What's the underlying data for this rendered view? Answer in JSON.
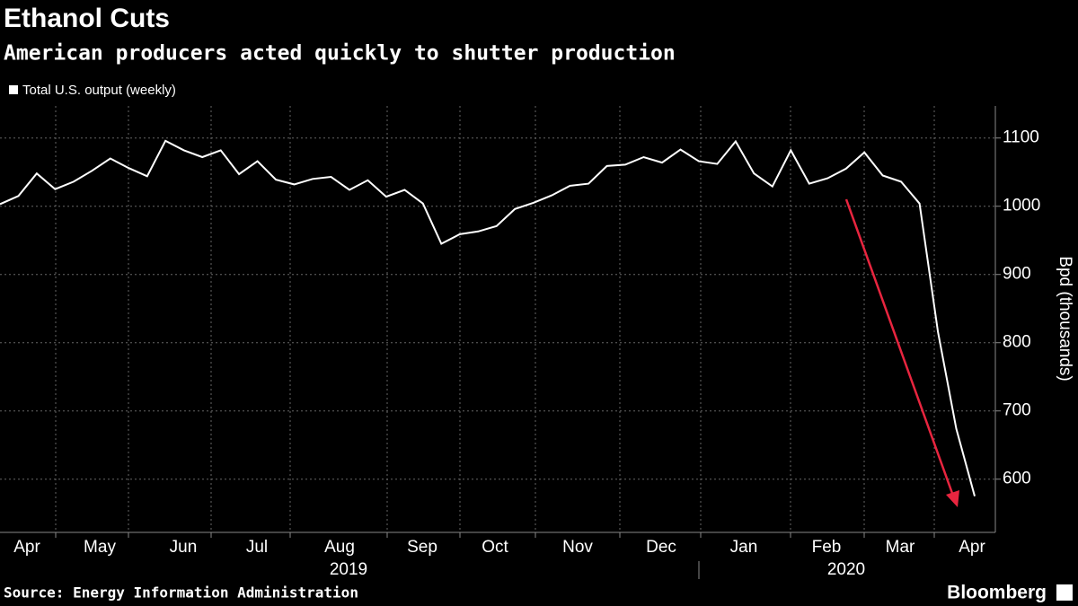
{
  "chart_data": {
    "type": "line",
    "title": "Ethanol Cuts",
    "subtitle": "American producers acted quickly to shutter production",
    "series": [
      {
        "name": "Total U.S. output (weekly)",
        "color": "#ffffff",
        "values": [
          1003,
          1015,
          1048,
          1025,
          1036,
          1052,
          1070,
          1056,
          1044,
          1096,
          1082,
          1072,
          1082,
          1047,
          1066,
          1039,
          1032,
          1040,
          1043,
          1024,
          1038,
          1014,
          1024,
          1004,
          945,
          959,
          963,
          971,
          996,
          1005,
          1016,
          1030,
          1033,
          1059,
          1061,
          1072,
          1064,
          1083,
          1066,
          1062,
          1095,
          1048,
          1029,
          1082,
          1033,
          1041,
          1055,
          1079,
          1045,
          1036,
          1004,
          816,
          674,
          575
        ]
      }
    ],
    "months": [
      "Apr",
      "May",
      "Jun",
      "Jul",
      "Aug",
      "Sep",
      "Oct",
      "Nov",
      "Dec",
      "Jan",
      "Feb",
      "Mar",
      "Apr"
    ],
    "years": [
      "2019",
      "2020"
    ],
    "ylabel": "Bpd (thousands)",
    "ylim": [
      522,
      1147
    ],
    "yticks": [
      600,
      700,
      800,
      900,
      1000,
      1100
    ],
    "grid": true,
    "source": "Source: Energy Information Administration",
    "brand": "Bloomberg"
  }
}
